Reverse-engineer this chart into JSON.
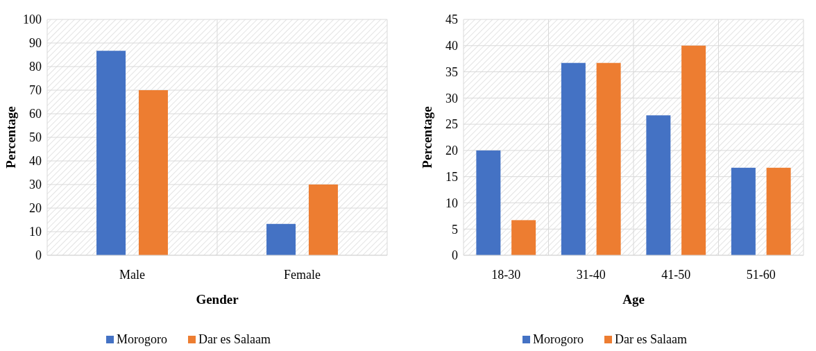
{
  "chart_data": [
    {
      "type": "bar",
      "xlabel": "Gender",
      "ylabel": "Percentage",
      "categories": [
        "Male",
        "Female"
      ],
      "series": [
        {
          "name": "Morogoro",
          "color": "#4472c4",
          "values": [
            86.7,
            13.3
          ]
        },
        {
          "name": "Dar es Salaam",
          "color": "#ed7d31",
          "values": [
            70,
            30
          ]
        }
      ],
      "ylim": [
        0,
        100
      ],
      "yticks": [
        0,
        10,
        20,
        30,
        40,
        50,
        60,
        70,
        80,
        90,
        100
      ],
      "grid": true,
      "legend": "bottom"
    },
    {
      "type": "bar",
      "xlabel": "Age",
      "ylabel": "Percentage",
      "categories": [
        "18-30",
        "31-40",
        "41-50",
        "51-60"
      ],
      "series": [
        {
          "name": "Morogoro",
          "color": "#4472c4",
          "values": [
            20,
            36.7,
            26.7,
            16.7
          ]
        },
        {
          "name": "Dar es Salaam",
          "color": "#ed7d31",
          "values": [
            6.7,
            36.7,
            40,
            16.7
          ]
        }
      ],
      "ylim": [
        0,
        45
      ],
      "yticks": [
        0,
        5,
        10,
        15,
        20,
        25,
        30,
        35,
        40,
        45
      ],
      "grid": true,
      "legend": "bottom"
    }
  ]
}
